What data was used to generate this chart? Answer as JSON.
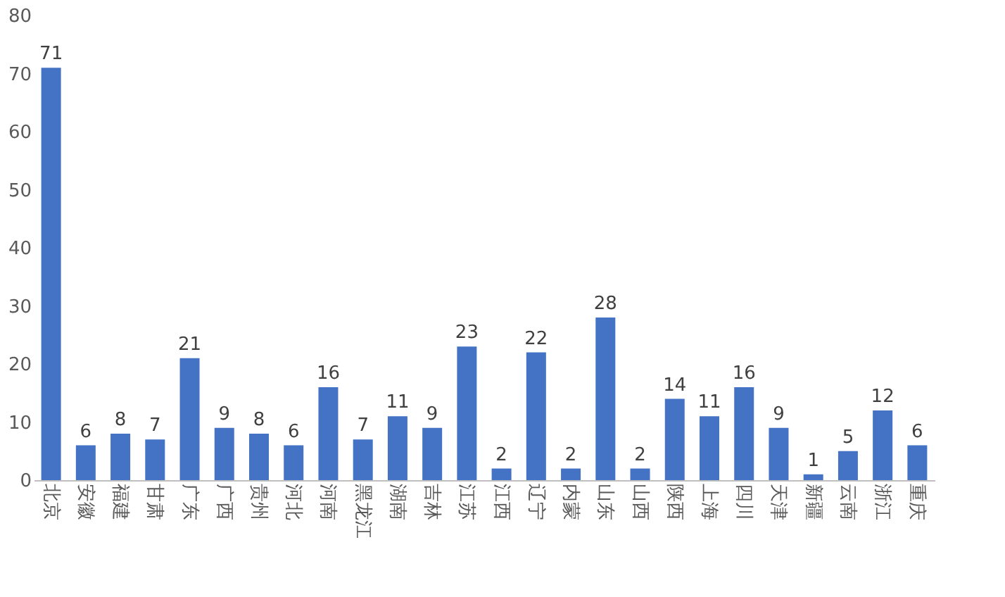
{
  "chart_data": {
    "type": "bar",
    "categories": [
      "北京",
      "安徽",
      "福建",
      "甘肃",
      "广东",
      "广西",
      "贵州",
      "河北",
      "河南",
      "黑龙江",
      "湖南",
      "吉林",
      "江苏",
      "江西",
      "辽宁",
      "内蒙",
      "山东",
      "山西",
      "陕西",
      "上海",
      "四川",
      "天津",
      "新疆",
      "云南",
      "浙江",
      "重庆"
    ],
    "values": [
      71,
      6,
      8,
      7,
      21,
      9,
      8,
      6,
      16,
      7,
      11,
      9,
      23,
      2,
      22,
      2,
      28,
      2,
      14,
      11,
      16,
      9,
      1,
      5,
      12,
      6
    ],
    "color": "#4472c4",
    "ylim": [
      0,
      80
    ],
    "yticks": [
      0,
      10,
      20,
      30,
      40,
      50,
      60,
      70,
      80
    ],
    "grid": false,
    "data_labels": true
  }
}
